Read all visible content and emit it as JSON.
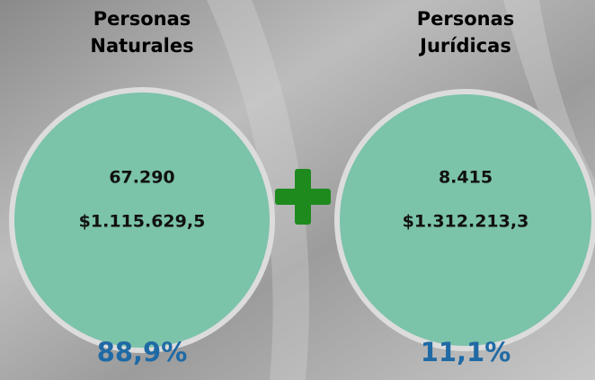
{
  "groups": [
    {
      "title": [
        "Personas",
        "Naturales"
      ],
      "count": "67.290",
      "amount": "$1.115.629,5",
      "share": "88,9%"
    },
    {
      "title": [
        "Personas",
        "Jurídicas"
      ],
      "count": "8.415",
      "amount": "$1.312.213,3",
      "share": "11,1%"
    }
  ]
}
